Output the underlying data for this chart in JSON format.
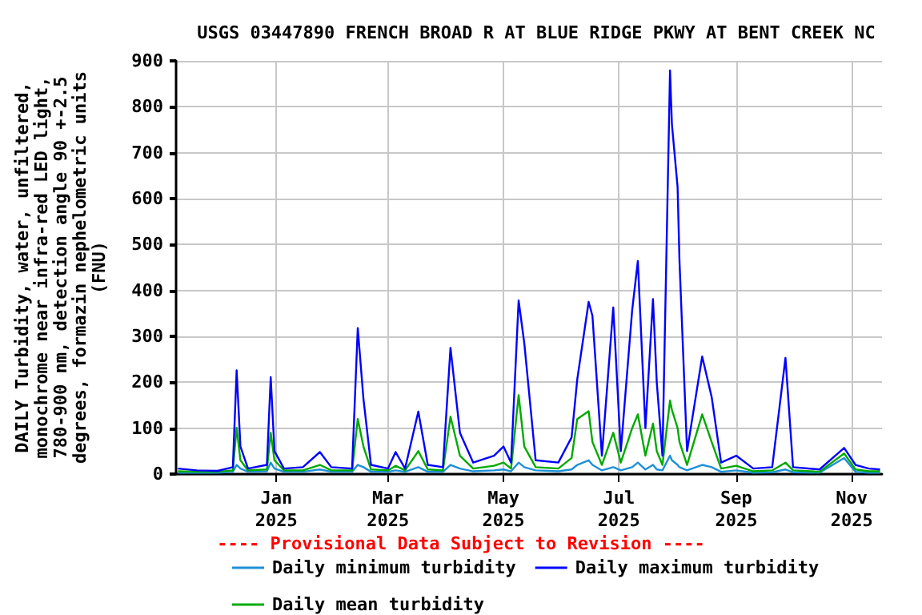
{
  "chart_data": {
    "type": "line",
    "title": "USGS 03447890 FRENCH BROAD R AT BLUE RIDGE PKWY AT BENT CREEK NC",
    "ylabel": "DAILY Turbidity, water, unfiltered,\nmonochrome near infra-red LED light,\n780-900 nm, detection angle 90 +-2.5\ndegrees, formazin nephelometric units\n(FNU)",
    "annotations": [
      "---- Provisional Data Subject to Revision ----"
    ],
    "x": [
      "2024-11-10",
      "2024-11-20",
      "2024-12-01",
      "2024-12-09",
      "2024-12-11",
      "2024-12-13",
      "2024-12-17",
      "2024-12-27",
      "2024-12-29",
      "2024-12-31",
      "2025-01-05",
      "2025-01-15",
      "2025-01-24",
      "2025-01-30",
      "2025-02-10",
      "2025-02-13",
      "2025-02-16",
      "2025-02-20",
      "2025-03-01",
      "2025-03-05",
      "2025-03-10",
      "2025-03-17",
      "2025-03-22",
      "2025-03-30",
      "2025-04-03",
      "2025-04-08",
      "2025-04-15",
      "2025-04-26",
      "2025-05-01",
      "2025-05-05",
      "2025-05-09",
      "2025-05-12",
      "2025-05-18",
      "2025-05-30",
      "2025-06-06",
      "2025-06-09",
      "2025-06-15",
      "2025-06-17",
      "2025-06-22",
      "2025-06-28",
      "2025-07-02",
      "2025-07-08",
      "2025-07-11",
      "2025-07-15",
      "2025-07-19",
      "2025-07-21",
      "2025-07-24",
      "2025-07-28",
      "2025-07-29",
      "2025-08-01",
      "2025-08-02",
      "2025-08-06",
      "2025-08-14",
      "2025-08-19",
      "2025-08-24",
      "2025-09-01",
      "2025-09-10",
      "2025-09-20",
      "2025-09-27",
      "2025-10-01",
      "2025-10-15",
      "2025-10-28",
      "2025-11-03",
      "2025-11-10",
      "2025-11-16"
    ],
    "series": [
      {
        "name": "Daily minimum turbidity",
        "color": "#1e90d8",
        "values": [
          3,
          3,
          3,
          5,
          20,
          12,
          5,
          6,
          25,
          12,
          5,
          5,
          10,
          5,
          5,
          20,
          15,
          5,
          5,
          8,
          5,
          15,
          5,
          5,
          20,
          12,
          6,
          8,
          10,
          6,
          25,
          15,
          8,
          6,
          10,
          20,
          30,
          20,
          8,
          15,
          8,
          15,
          25,
          10,
          20,
          10,
          8,
          40,
          30,
          20,
          15,
          8,
          20,
          15,
          5,
          8,
          3,
          4,
          10,
          4,
          3,
          35,
          5,
          3,
          3
        ]
      },
      {
        "name": "Daily maximum turbidity",
        "color": "#0000ff",
        "values": [
          12,
          8,
          7,
          15,
          226,
          60,
          12,
          20,
          211,
          50,
          12,
          15,
          48,
          15,
          12,
          318,
          164,
          20,
          12,
          48,
          12,
          136,
          20,
          15,
          275,
          90,
          25,
          40,
          60,
          25,
          378,
          285,
          30,
          25,
          80,
          207,
          375,
          345,
          40,
          363,
          50,
          357,
          464,
          100,
          381,
          200,
          40,
          879,
          762,
          625,
          464,
          50,
          256,
          168,
          25,
          40,
          12,
          15,
          253,
          15,
          10,
          57,
          20,
          12,
          10
        ]
      },
      {
        "name": "Daily mean turbidity",
        "color": "#00aa00",
        "values": [
          6,
          5,
          5,
          8,
          101,
          30,
          8,
          10,
          90,
          30,
          8,
          8,
          20,
          8,
          8,
          120,
          60,
          10,
          8,
          18,
          8,
          50,
          10,
          8,
          125,
          40,
          12,
          18,
          25,
          12,
          172,
          60,
          15,
          12,
          35,
          120,
          137,
          70,
          20,
          90,
          25,
          100,
          130,
          40,
          110,
          50,
          20,
          160,
          140,
          100,
          70,
          20,
          130,
          70,
          12,
          18,
          6,
          8,
          25,
          8,
          5,
          45,
          10,
          6,
          6
        ]
      }
    ],
    "xlim": [
      "2024-11-09",
      "2025-11-17"
    ],
    "xticks": [
      {
        "value": "2025-01-01",
        "label": "Jan\n2025"
      },
      {
        "value": "2025-03-01",
        "label": "Mar\n2025"
      },
      {
        "value": "2025-05-01",
        "label": "May\n2025"
      },
      {
        "value": "2025-07-01",
        "label": "Jul\n2025"
      },
      {
        "value": "2025-09-01",
        "label": "Sep\n2025"
      },
      {
        "value": "2025-11-01",
        "label": "Nov\n2025"
      }
    ],
    "ylim": [
      0,
      900
    ],
    "yticks": [
      0,
      100,
      200,
      300,
      400,
      500,
      600,
      700,
      800,
      900
    ],
    "grid": true,
    "legend": "bottom",
    "marker": "none",
    "line_style": "solid"
  }
}
